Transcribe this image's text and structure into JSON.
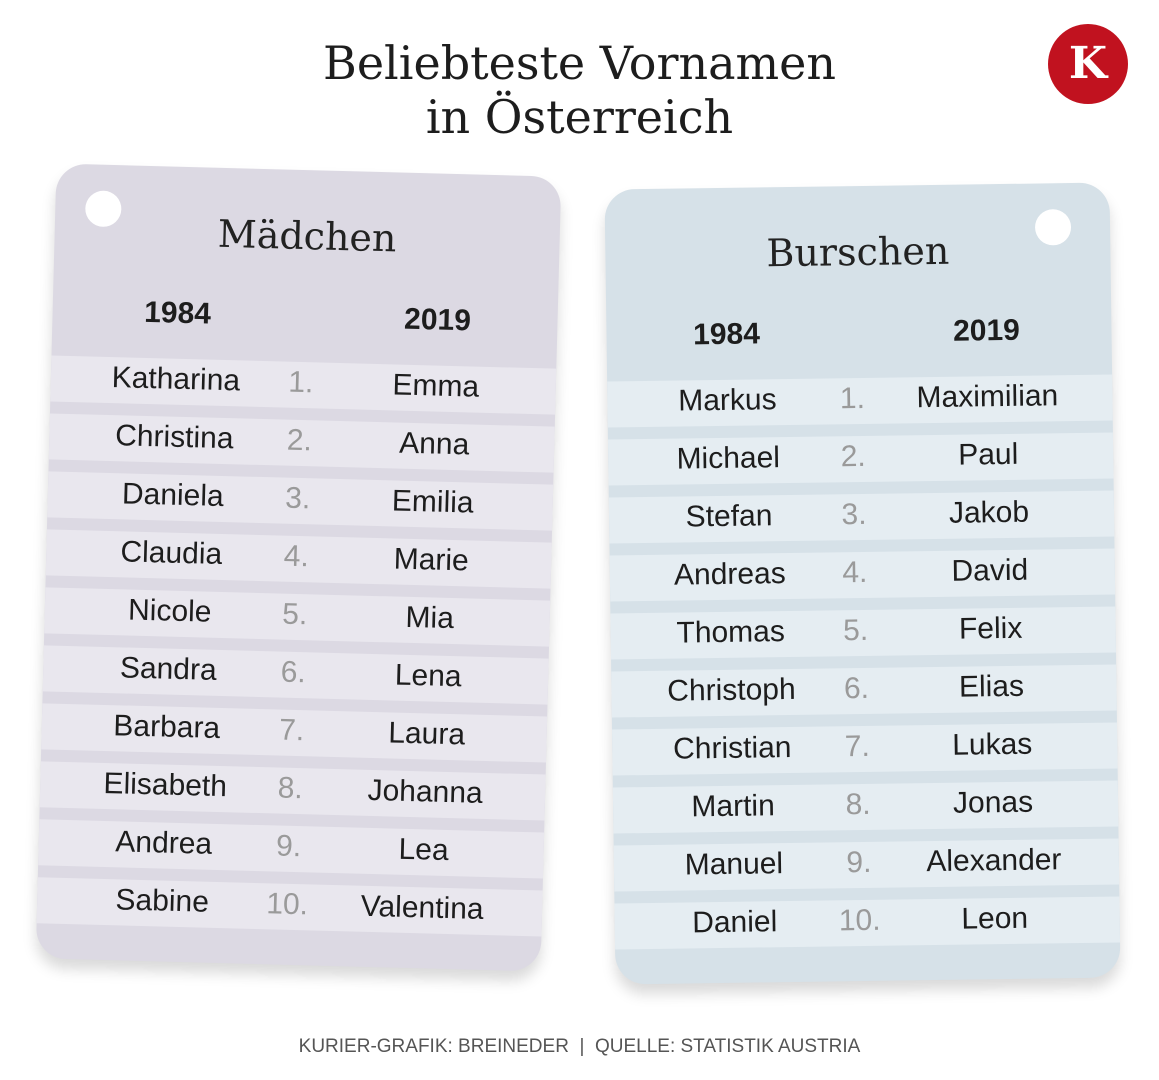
{
  "header": {
    "title_lines": [
      "Beliebteste Vornamen",
      "in Österreich"
    ],
    "logo": "K"
  },
  "cards": [
    {
      "title": "Mädchen",
      "columns": [
        "1984",
        "2019"
      ],
      "rows": [
        [
          "Katharina",
          "1.",
          "Emma"
        ],
        [
          "Christina",
          "2.",
          "Anna"
        ],
        [
          "Daniela",
          "3.",
          "Emilia"
        ],
        [
          "Claudia",
          "4.",
          "Marie"
        ],
        [
          "Nicole",
          "5.",
          "Mia"
        ],
        [
          "Sandra",
          "6.",
          "Lena"
        ],
        [
          "Barbara",
          "7.",
          "Laura"
        ],
        [
          "Elisabeth",
          "8.",
          "Johanna"
        ],
        [
          "Andrea",
          "9.",
          "Lea"
        ],
        [
          "Sabine",
          "10.",
          "Valentina"
        ]
      ]
    },
    {
      "title": "Burschen",
      "columns": [
        "1984",
        "2019"
      ],
      "rows": [
        [
          "Markus",
          "1.",
          "Maximilian"
        ],
        [
          "Michael",
          "2.",
          "Paul"
        ],
        [
          "Stefan",
          "3.",
          "Jakob"
        ],
        [
          "Andreas",
          "4.",
          "David"
        ],
        [
          "Thomas",
          "5.",
          "Felix"
        ],
        [
          "Christoph",
          "6.",
          "Elias"
        ],
        [
          "Christian",
          "7.",
          "Lukas"
        ],
        [
          "Martin",
          "8.",
          "Jonas"
        ],
        [
          "Manuel",
          "9.",
          "Alexander"
        ],
        [
          "Daniel",
          "10.",
          "Leon"
        ]
      ]
    }
  ],
  "footer": "KURIER-GRAFIK: BREINEDER  |  QUELLE: STATISTIK AUSTRIA"
}
